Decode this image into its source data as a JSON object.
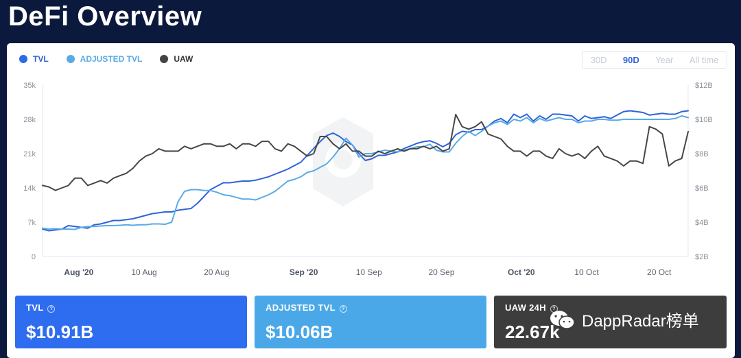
{
  "header": {
    "title": "DeFi Overview"
  },
  "legend": [
    {
      "label": "TVL",
      "color": "#2d6be6"
    },
    {
      "label": "ADJUSTED TVL",
      "color": "#5aaae6"
    },
    {
      "label": "UAW",
      "color": "#444444"
    }
  ],
  "range_options": [
    "30D",
    "90D",
    "Year",
    "All time"
  ],
  "range_selected": "90D",
  "stats": [
    {
      "label": "TVL",
      "value": "$10.91B",
      "color": "#2f6df0"
    },
    {
      "label": "ADJUSTED TVL",
      "value": "$10.06B",
      "color": "#4aa8e8"
    },
    {
      "label": "UAW 24H",
      "value": "22.67k",
      "color": "#3d3d3d"
    }
  ],
  "watermark": "DappRadar榜单",
  "chart_data": {
    "type": "line",
    "x_tick_labels": [
      "Aug '20",
      "10 Aug",
      "20 Aug",
      "Sep '20",
      "10 Sep",
      "20 Sep",
      "Oct '20",
      "10 Oct",
      "20 Oct"
    ],
    "x_tick_major": [
      true,
      false,
      false,
      true,
      false,
      false,
      true,
      false,
      false
    ],
    "x_range": [
      "2020-07-27",
      "2020-10-24"
    ],
    "left_axis": {
      "ticks": [
        "0",
        "7k",
        "14k",
        "21k",
        "28k",
        "35k"
      ],
      "ylim": [
        0,
        35000
      ]
    },
    "right_axis": {
      "ticks": [
        "$2B",
        "$4B",
        "$6B",
        "$8B",
        "$10B",
        "$12B"
      ],
      "ylim": [
        2,
        12
      ]
    },
    "grid": false,
    "series": [
      {
        "name": "TVL",
        "axis": "right",
        "color": "#2d63d8",
        "values": [
          3.6,
          3.5,
          3.55,
          3.6,
          3.8,
          3.75,
          3.7,
          3.65,
          3.85,
          3.9,
          4.0,
          4.1,
          4.1,
          4.15,
          4.2,
          4.3,
          4.4,
          4.5,
          4.55,
          4.6,
          4.6,
          4.7,
          4.75,
          4.8,
          5.1,
          5.5,
          5.9,
          6.1,
          6.3,
          6.3,
          6.35,
          6.4,
          6.4,
          6.45,
          6.55,
          6.65,
          6.8,
          6.95,
          7.1,
          7.3,
          7.5,
          7.9,
          8.3,
          8.7,
          9.05,
          9.2,
          9.0,
          8.7,
          8.5,
          8.0,
          7.6,
          7.7,
          7.9,
          7.9,
          8.0,
          8.1,
          8.3,
          8.45,
          8.6,
          8.7,
          8.75,
          8.6,
          8.4,
          8.6,
          9.1,
          9.3,
          9.25,
          9.4,
          9.4,
          9.6,
          9.9,
          10.05,
          9.8,
          10.3,
          10.1,
          10.3,
          9.9,
          10.2,
          10.0,
          10.3,
          10.3,
          10.25,
          10.2,
          9.9,
          10.2,
          10.05,
          10.1,
          10.15,
          10.05,
          10.25,
          10.45,
          10.5,
          10.45,
          10.4,
          10.25,
          10.3,
          10.35,
          10.3,
          10.3,
          10.45,
          10.5
        ]
      },
      {
        "name": "ADJUSTED TVL",
        "axis": "right",
        "color": "#5aaae6",
        "values": [
          3.65,
          3.6,
          3.62,
          3.6,
          3.6,
          3.58,
          3.7,
          3.75,
          3.75,
          3.78,
          3.8,
          3.8,
          3.82,
          3.85,
          3.82,
          3.85,
          3.85,
          3.9,
          3.9,
          3.88,
          4.0,
          5.2,
          5.8,
          5.9,
          5.9,
          5.85,
          5.85,
          5.75,
          5.6,
          5.55,
          5.45,
          5.35,
          5.35,
          5.3,
          5.45,
          5.6,
          5.8,
          6.1,
          6.4,
          6.5,
          6.65,
          6.9,
          7.0,
          7.2,
          7.4,
          7.8,
          8.3,
          8.9,
          8.5,
          7.8,
          8.0,
          8.0,
          8.1,
          8.2,
          8.15,
          8.1,
          8.2,
          8.3,
          8.4,
          8.4,
          8.55,
          8.2,
          8.1,
          8.1,
          8.6,
          9.0,
          9.3,
          9.05,
          9.3,
          9.6,
          9.8,
          9.9,
          9.7,
          10.0,
          9.9,
          10.1,
          9.8,
          10.05,
          9.9,
          10.0,
          10.1,
          10.0,
          10.0,
          9.8,
          9.9,
          9.9,
          10.0,
          10.0,
          9.95,
          9.95,
          10.0,
          10.0,
          10.0,
          10.0,
          10.0,
          10.0,
          10.0,
          10.0,
          10.05,
          10.2,
          10.1
        ]
      },
      {
        "name": "UAW",
        "axis": "left",
        "color": "#474747",
        "values": [
          14500,
          14200,
          13500,
          14000,
          14500,
          16000,
          16000,
          14500,
          15000,
          15500,
          15000,
          16000,
          16500,
          17000,
          18000,
          19500,
          20500,
          21000,
          22000,
          21500,
          21500,
          21500,
          22500,
          22000,
          22500,
          23000,
          23000,
          22500,
          22500,
          23000,
          22000,
          23000,
          23000,
          22500,
          23500,
          23500,
          22000,
          21500,
          23000,
          22500,
          21500,
          20500,
          21000,
          24500,
          24500,
          23000,
          22000,
          23000,
          21500,
          21500,
          20500,
          20500,
          21500,
          21000,
          21500,
          22000,
          21500,
          22000,
          22000,
          22500,
          22000,
          22500,
          21500,
          22000,
          29000,
          26500,
          26000,
          26500,
          27500,
          25000,
          24500,
          24000,
          22500,
          21500,
          21500,
          20500,
          21500,
          21500,
          20500,
          20000,
          22000,
          21000,
          20500,
          21000,
          20000,
          21500,
          22500,
          20500,
          20000,
          19500,
          18500,
          19500,
          19500,
          19000,
          26500,
          26000,
          25000,
          18500,
          19500,
          20000,
          25500
        ]
      }
    ]
  }
}
